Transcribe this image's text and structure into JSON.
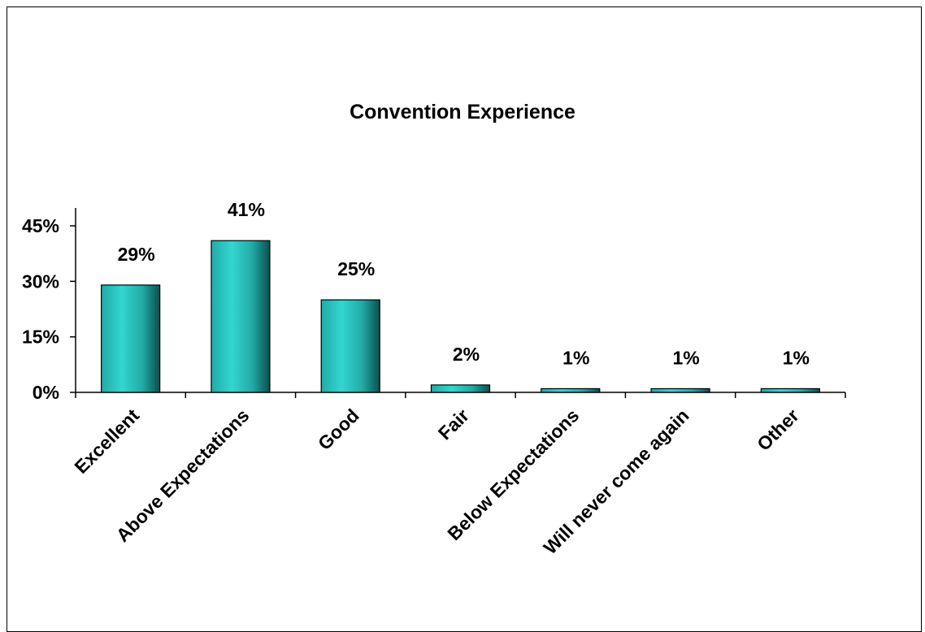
{
  "chart_data": {
    "type": "bar",
    "title": "Convention Experience",
    "xlabel": "",
    "ylabel": "",
    "categories": [
      "Excellent",
      "Above Expectations",
      "Good",
      "Fair",
      "Below Expectations",
      "Will never come again",
      "Other"
    ],
    "values": [
      29,
      41,
      25,
      2,
      1,
      1,
      1
    ],
    "data_labels": [
      "29%",
      "41%",
      "25%",
      "2%",
      "1%",
      "1%",
      "1%"
    ],
    "ylim": [
      0,
      45
    ],
    "yticks": [
      0,
      15,
      30,
      45
    ],
    "ytick_labels": [
      "0%",
      "15%",
      "30%",
      "45%"
    ],
    "grid": false,
    "legend": "none",
    "colors": {
      "bar_light": "#33d6d0",
      "bar_mid": "#22aaa6",
      "bar_dark": "#0b4f4e",
      "axis": "#000000"
    }
  }
}
